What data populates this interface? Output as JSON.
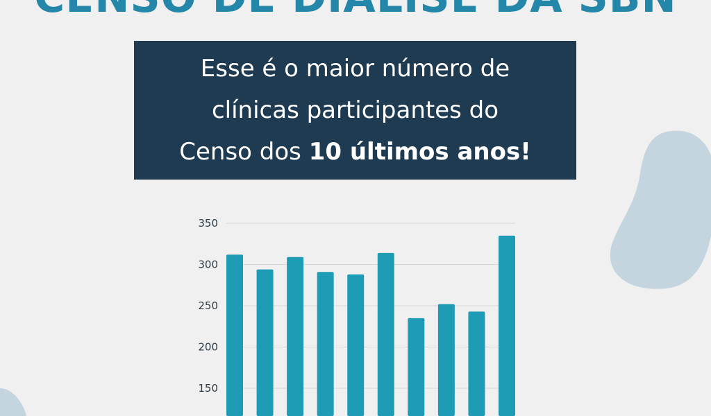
{
  "header": {
    "title": "CENSO DE DIÁLISE DA SBN"
  },
  "banner": {
    "line1": "Esse é o maior número de",
    "line2": "clínicas participantes do",
    "line3_regular": "Censo dos ",
    "line3_bold": "10 últimos anos!"
  },
  "colors": {
    "background": "#f0f0f0",
    "title": "#2486a8",
    "banner_bg": "#1e3b52",
    "bar": "#1e9bb5",
    "blob": "#c4d5df",
    "axis_text": "#2f3b45",
    "grid": "#d9d9d9"
  },
  "chart_data": {
    "type": "bar",
    "categories": [
      "",
      "",
      "",
      "",
      "",
      "",
      "",
      "",
      "",
      ""
    ],
    "values": [
      312,
      294,
      309,
      291,
      288,
      314,
      235,
      252,
      243,
      335
    ],
    "yticks": [
      150,
      200,
      250,
      300,
      350
    ],
    "ylim": [
      150,
      350
    ],
    "grid": true,
    "title": "",
    "xlabel": "",
    "ylabel": ""
  }
}
